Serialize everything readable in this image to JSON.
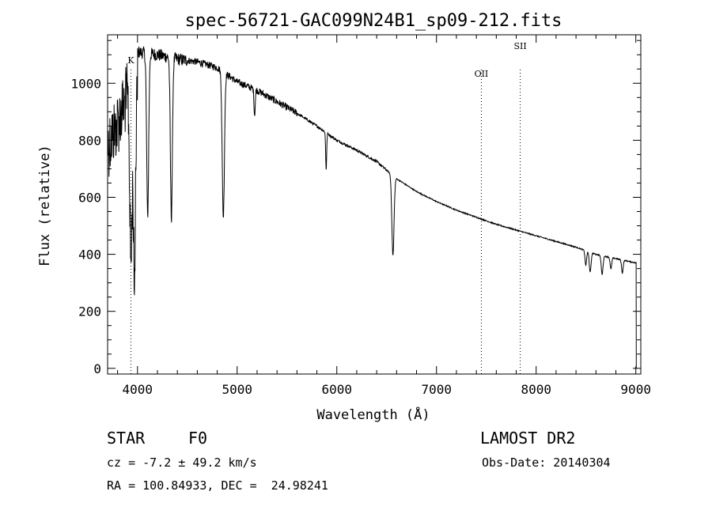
{
  "chart_data": {
    "type": "line",
    "title": "spec-56721-GAC099N24B1_sp09-212.fits",
    "xlabel": "Wavelength (Å)",
    "ylabel": "Flux (relative)",
    "xlim": [
      3700,
      9050
    ],
    "ylim": [
      -20,
      1170
    ],
    "x_ticks": [
      4000,
      5000,
      6000,
      7000,
      8000,
      9000
    ],
    "y_ticks": [
      0,
      200,
      400,
      600,
      800,
      1000
    ],
    "grid": false,
    "line_color": "#000000",
    "continuum_anchors": [
      [
        3700,
        900
      ],
      [
        3800,
        980
      ],
      [
        3900,
        1080
      ],
      [
        4000,
        1110
      ],
      [
        4200,
        1100
      ],
      [
        4400,
        1085
      ],
      [
        4600,
        1075
      ],
      [
        4800,
        1055
      ],
      [
        5000,
        1005
      ],
      [
        5200,
        975
      ],
      [
        5400,
        935
      ],
      [
        5600,
        895
      ],
      [
        5800,
        850
      ],
      [
        6000,
        800
      ],
      [
        6200,
        765
      ],
      [
        6400,
        725
      ],
      [
        6600,
        665
      ],
      [
        6800,
        620
      ],
      [
        7000,
        585
      ],
      [
        7200,
        555
      ],
      [
        7400,
        530
      ],
      [
        7600,
        505
      ],
      [
        7800,
        485
      ],
      [
        8000,
        465
      ],
      [
        8200,
        445
      ],
      [
        8400,
        425
      ],
      [
        8600,
        400
      ],
      [
        8800,
        385
      ],
      [
        9000,
        370
      ]
    ],
    "absorption_lines": [
      {
        "center": 3934,
        "depth": 600,
        "width": 12
      },
      {
        "center": 3969,
        "depth": 680,
        "width": 10
      },
      {
        "center": 4102,
        "depth": 570,
        "width": 10
      },
      {
        "center": 4340,
        "depth": 560,
        "width": 10
      },
      {
        "center": 4861,
        "depth": 510,
        "width": 11
      },
      {
        "center": 5175,
        "depth": 90,
        "width": 6
      },
      {
        "center": 5893,
        "depth": 130,
        "width": 5
      },
      {
        "center": 6563,
        "depth": 280,
        "width": 11
      },
      {
        "center": 8498,
        "depth": 50,
        "width": 8
      },
      {
        "center": 8542,
        "depth": 70,
        "width": 9
      },
      {
        "center": 8662,
        "depth": 65,
        "width": 9
      },
      {
        "center": 8750,
        "depth": 40,
        "width": 8
      },
      {
        "center": 8865,
        "depth": 45,
        "width": 8
      }
    ],
    "lines_marked": [
      {
        "label": "K",
        "wavelength": 3934
      },
      {
        "label": "OII",
        "wavelength": 7450
      },
      {
        "label": "SII",
        "wavelength": 7840
      }
    ]
  },
  "info": {
    "object_class": "STAR",
    "subclass": "F0",
    "survey": "LAMOST DR2",
    "redshift": "cz = -7.2 ± 49.2 km/s",
    "obs_date": "Obs-Date: 20140304",
    "coords": "RA = 100.84933, DEC =  24.98241"
  }
}
